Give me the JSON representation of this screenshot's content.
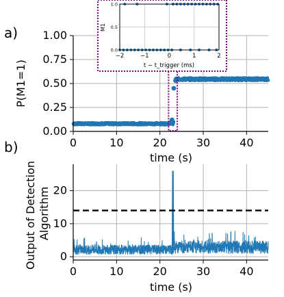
{
  "chart_data": [
    {
      "panel": "a)",
      "type": "scatter",
      "xlabel": "time (s)",
      "ylabel": "P(M1=1)",
      "xlim": [
        0,
        45
      ],
      "ylim": [
        0,
        1
      ],
      "xticks": [
        "0",
        "10",
        "20",
        "30",
        "40"
      ],
      "yticks": [
        "0.00",
        "0.25",
        "0.50",
        "0.75",
        "1.00"
      ],
      "grid": true,
      "color": "#1f77b4",
      "highlight_color": "#800080",
      "segments": [
        {
          "x_start": 0,
          "x_end": 22,
          "level": 0.08,
          "noise": 0.012
        },
        {
          "x_start": 22,
          "x_end": 23.2,
          "level": 0.085,
          "noise": 0.015
        },
        {
          "x_start": 23.6,
          "x_end": 45,
          "level": 0.545,
          "noise": 0.015
        }
      ],
      "marked_points": [
        {
          "x": 22.8,
          "y": 0.12
        },
        {
          "x": 23.2,
          "y": 0.45
        },
        {
          "x": 23.6,
          "y": 0.53
        }
      ],
      "highlight_window": {
        "x_range": [
          22,
          24
        ],
        "y_range": [
          0,
          0.65
        ]
      }
    },
    {
      "panel": "inset",
      "type": "scatter",
      "xlabel": "t − t_trigger (ms)",
      "ylabel": "M1",
      "xlim": [
        -2,
        2
      ],
      "ylim": [
        0,
        1
      ],
      "xticks": [
        "−2",
        "−1",
        "0",
        "1",
        "2"
      ],
      "yticks": [
        "0.0",
        "0.5",
        "1.0"
      ],
      "grid": true,
      "color": "#1f77b4",
      "points_at_1": [
        -1.8,
        -1.3,
        -0.1,
        0.15,
        0.3,
        0.45,
        0.6,
        0.75,
        0.9,
        1.05,
        1.2,
        1.35,
        1.5,
        1.65,
        1.8,
        1.95
      ],
      "points_at_0": [
        -2.0,
        -1.85,
        -1.7,
        -1.55,
        -1.4,
        -1.25,
        -1.1,
        -0.95,
        -0.8,
        -0.65,
        -0.5,
        -0.35,
        -0.2,
        -0.05,
        0.1,
        0.45,
        0.85,
        1.2,
        1.6,
        1.9
      ]
    },
    {
      "panel": "b)",
      "type": "line",
      "xlabel": "time (s)",
      "ylabel": "Output of Detection Algorithm",
      "ylabel_lines": [
        "Output of Detection",
        "Algorithm"
      ],
      "xlim": [
        0,
        45
      ],
      "ylim": [
        -1,
        28
      ],
      "xticks": [
        "0",
        "10",
        "20",
        "30",
        "40"
      ],
      "yticks": [
        "0",
        "10",
        "20"
      ],
      "grid": true,
      "color": "#1f77b4",
      "threshold": 14,
      "spike": {
        "x": 23,
        "y": 26
      },
      "segments": [
        {
          "x_start": 0,
          "x_end": 22.9,
          "mean": 2.0,
          "spread": 1.5
        },
        {
          "x_start": 23.1,
          "x_end": 45,
          "mean": 2.7,
          "spread": 2.0
        }
      ]
    }
  ]
}
